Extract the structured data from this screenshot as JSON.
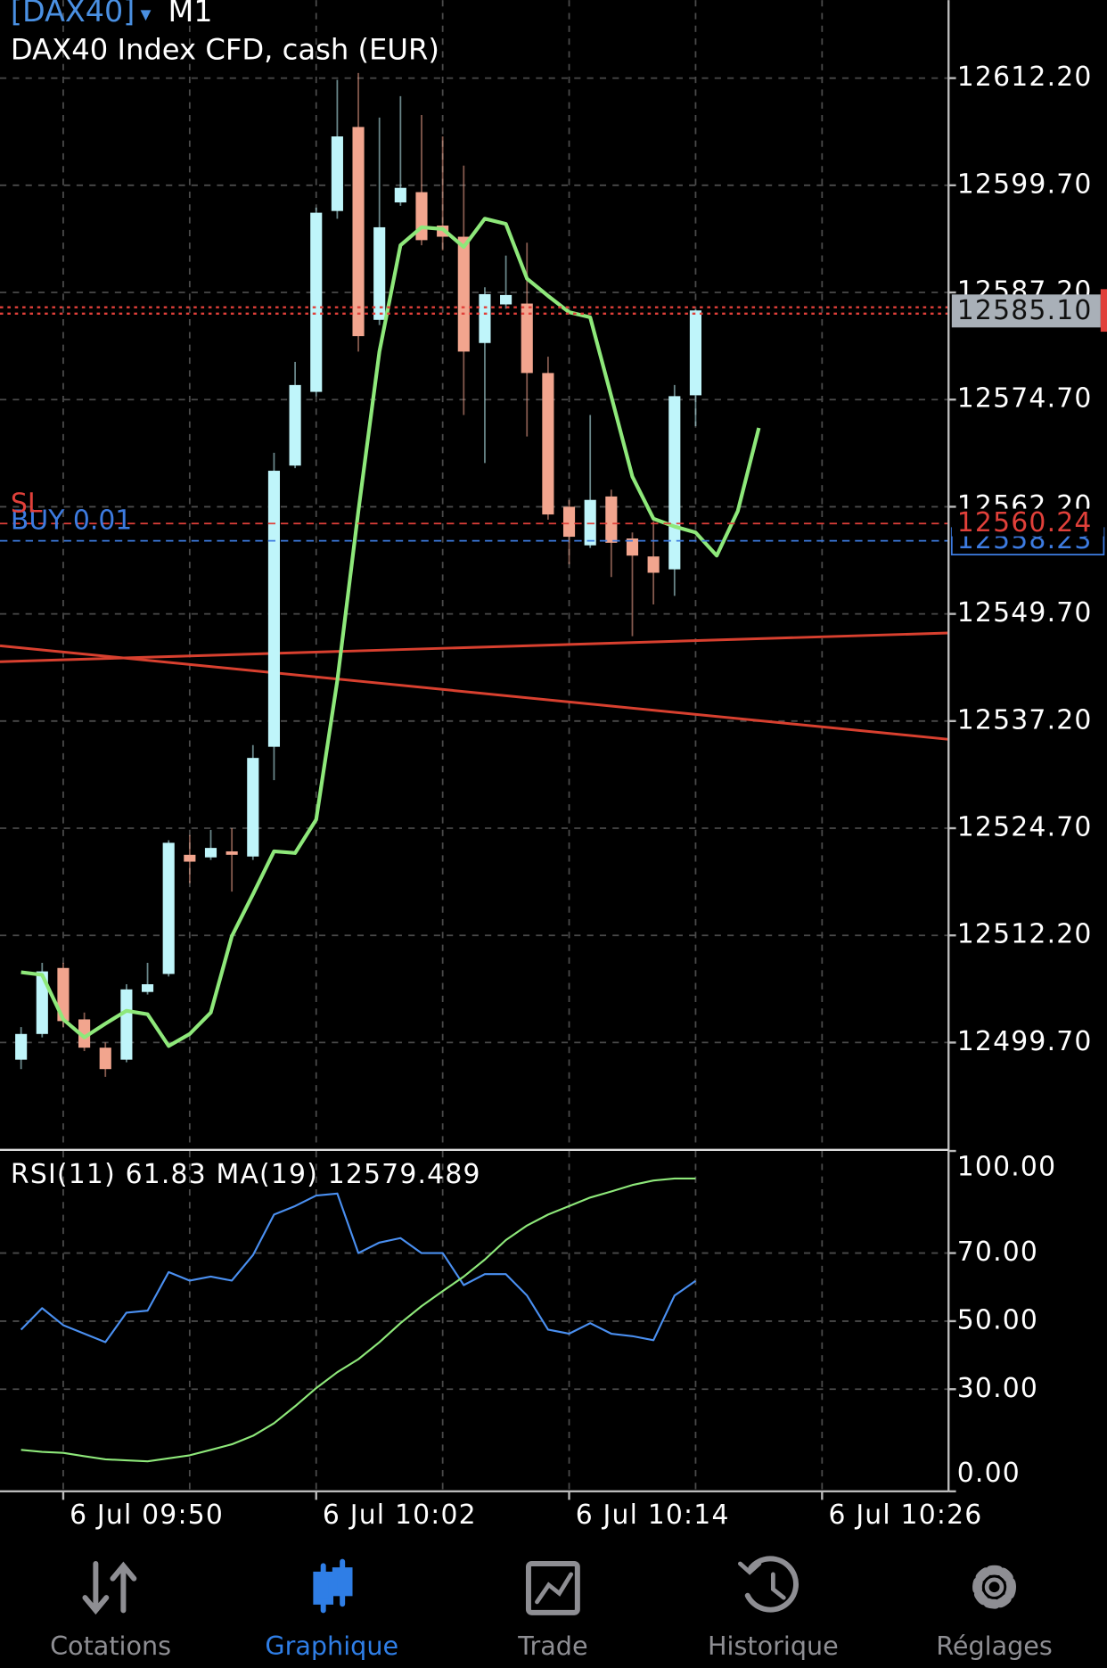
{
  "header": {
    "symbol": "[DAX40]",
    "arrow": "▾",
    "timeframe": "M1",
    "description": "DAX40 Index CFD, cash (EUR)"
  },
  "chart_data": [
    {
      "type": "candlestick",
      "x": [
        "6 Jul 09:48",
        "6 Jul 09:49",
        "6 Jul 09:50",
        "6 Jul 09:51",
        "6 Jul 09:52",
        "6 Jul 09:53",
        "6 Jul 09:54",
        "6 Jul 09:55",
        "6 Jul 09:56",
        "6 Jul 09:57",
        "6 Jul 09:58",
        "6 Jul 09:59",
        "6 Jul 10:00",
        "6 Jul 10:01",
        "6 Jul 10:02",
        "6 Jul 10:03",
        "6 Jul 10:04",
        "6 Jul 10:05",
        "6 Jul 10:06",
        "6 Jul 10:07",
        "6 Jul 10:08",
        "6 Jul 10:09",
        "6 Jul 10:10",
        "6 Jul 10:11",
        "6 Jul 10:12",
        "6 Jul 10:13",
        "6 Jul 10:14",
        "6 Jul 10:15",
        "6 Jul 10:16",
        "6 Jul 10:17",
        "6 Jul 10:18",
        "6 Jul 10:19",
        "6 Jul 10:20"
      ],
      "open": [
        12497.7,
        12500.7,
        12508.4,
        12502.4,
        12499.1,
        12497.7,
        12505.6,
        12507.7,
        12521.6,
        12521.3,
        12522.0,
        12521.4,
        12534.2,
        12567.0,
        12575.6,
        12596.7,
        12606.5,
        12584.0,
        12597.7,
        12598.9,
        12595.0,
        12593.7,
        12581.3,
        12585.8,
        12585.9,
        12577.8,
        12562.2,
        12557.7,
        12563.4,
        12558.5,
        12556.4,
        12554.9,
        12575.2
      ],
      "high": [
        12501.5,
        12509.0,
        12509.0,
        12503.2,
        12499.7,
        12506.5,
        12509.0,
        12523.3,
        12523.9,
        12524.5,
        12524.7,
        12534.4,
        12568.5,
        12579.1,
        12597.1,
        12612.0,
        12612.8,
        12607.6,
        12610.1,
        12607.9,
        12605.4,
        12602.0,
        12587.8,
        12591.5,
        12593.0,
        12579.7,
        12563.0,
        12572.9,
        12564.2,
        12559.2,
        12560.5,
        12576.4,
        12585.2
      ],
      "low": [
        12496.6,
        12500.3,
        12501.5,
        12498.7,
        12495.7,
        12497.4,
        12505.3,
        12507.4,
        12518.3,
        12521.0,
        12517.3,
        12521.0,
        12530.3,
        12566.7,
        12575.1,
        12595.8,
        12580.3,
        12583.4,
        12597.3,
        12592.7,
        12592.1,
        12572.9,
        12567.3,
        12585.3,
        12570.4,
        12560.7,
        12555.5,
        12557.4,
        12554.0,
        12547.1,
        12550.8,
        12551.8,
        12571.6
      ],
      "close": [
        12500.7,
        12508.0,
        12502.2,
        12499.1,
        12496.6,
        12505.9,
        12506.5,
        12523.0,
        12520.8,
        12522.4,
        12521.6,
        12532.9,
        12566.4,
        12576.4,
        12596.5,
        12605.4,
        12582.1,
        12594.8,
        12599.4,
        12593.3,
        12593.7,
        12580.3,
        12587.0,
        12586.9,
        12577.8,
        12561.3,
        12558.7,
        12563.0,
        12558.0,
        12556.5,
        12554.5,
        12575.1,
        12585.1
      ],
      "up_color": "#bff5fa",
      "down_color": "#f2a58e",
      "overlay": {
        "color": "#8ee87a",
        "x": [
          "6 Jul 09:48",
          "6 Jul 09:49",
          "6 Jul 09:50",
          "6 Jul 09:51",
          "6 Jul 09:52",
          "6 Jul 09:53",
          "6 Jul 09:54",
          "6 Jul 09:55",
          "6 Jul 09:56",
          "6 Jul 09:57",
          "6 Jul 09:58",
          "6 Jul 09:59",
          "6 Jul 10:00",
          "6 Jul 10:01",
          "6 Jul 10:02",
          "6 Jul 10:03",
          "6 Jul 10:04",
          "6 Jul 10:05",
          "6 Jul 10:06",
          "6 Jul 10:07",
          "6 Jul 10:08",
          "6 Jul 10:09",
          "6 Jul 10:10",
          "6 Jul 10:11",
          "6 Jul 10:12",
          "6 Jul 10:13",
          "6 Jul 10:14",
          "6 Jul 10:15",
          "6 Jul 10:16",
          "6 Jul 10:17",
          "6 Jul 10:18",
          "6 Jul 10:19",
          "6 Jul 10:20",
          "6 Jul 10:21",
          "6 Jul 10:22",
          "6 Jul 10:23"
        ],
        "values": [
          12507.9,
          12507.6,
          12502.4,
          12500.3,
          12501.9,
          12503.4,
          12503.0,
          12499.3,
          12500.7,
          12503.2,
          12512.1,
          12517.0,
          12522.0,
          12521.8,
          12525.7,
          12541.9,
          12561.7,
          12580.3,
          12592.7,
          12594.8,
          12594.6,
          12592.5,
          12595.8,
          12595.2,
          12588.8,
          12586.8,
          12584.9,
          12584.3,
          12575.1,
          12565.7,
          12560.8,
          12559.9,
          12559.2,
          12556.5,
          12561.7,
          12571.4
        ]
      },
      "xlim": [
        "6 Jul 09:47",
        "6 Jul 10:32"
      ],
      "xticks": [
        "6 Jul 09:50",
        "6 Jul 10:02",
        "6 Jul 10:14",
        "6 Jul 10:26"
      ],
      "ylim": [
        12487.3,
        12621.3
      ],
      "yticks": [
        {
          "value": 12612.2,
          "label": "12612.20"
        },
        {
          "value": 12599.7,
          "label": "12599.70"
        },
        {
          "value": 12587.2,
          "label": "12587.20"
        },
        {
          "value": 12574.7,
          "label": "12574.70"
        },
        {
          "value": 12562.2,
          "label": "12562.20"
        },
        {
          "value": 12549.7,
          "label": "12549.70"
        },
        {
          "value": 12537.2,
          "label": "12537.20"
        },
        {
          "value": 12524.7,
          "label": "12524.70"
        },
        {
          "value": 12512.2,
          "label": "12512.20"
        },
        {
          "value": 12499.7,
          "label": "12499.70"
        }
      ],
      "grid": true,
      "levels": [
        {
          "name": "BUY 0.01",
          "value": 12558.23,
          "label": "12558.23",
          "color": "#3d7be0"
        },
        {
          "name": "SL",
          "value": 12560.24,
          "label": "12560.24",
          "color": "#e0403a"
        }
      ],
      "current_price": {
        "value": 12585.1,
        "label": "12585.10",
        "color": "#e0403a"
      }
    },
    {
      "type": "line",
      "title": "RSI(11) 61.83 MA(19) 12579.489",
      "x": [
        "6 Jul 09:48",
        "6 Jul 09:49",
        "6 Jul 09:50",
        "6 Jul 09:51",
        "6 Jul 09:52",
        "6 Jul 09:53",
        "6 Jul 09:54",
        "6 Jul 09:55",
        "6 Jul 09:56",
        "6 Jul 09:57",
        "6 Jul 09:58",
        "6 Jul 09:59",
        "6 Jul 10:00",
        "6 Jul 10:01",
        "6 Jul 10:02",
        "6 Jul 10:03",
        "6 Jul 10:04",
        "6 Jul 10:05",
        "6 Jul 10:06",
        "6 Jul 10:07",
        "6 Jul 10:08",
        "6 Jul 10:09",
        "6 Jul 10:10",
        "6 Jul 10:11",
        "6 Jul 10:12",
        "6 Jul 10:13",
        "6 Jul 10:14",
        "6 Jul 10:15",
        "6 Jul 10:16",
        "6 Jul 10:17",
        "6 Jul 10:18",
        "6 Jul 10:19",
        "6 Jul 10:20"
      ],
      "series": [
        {
          "color": "#4a8ff0",
          "values": [
            47.5,
            53.8,
            48.8,
            46.3,
            43.8,
            52.5,
            53.1,
            64.4,
            61.9,
            63.1,
            61.9,
            69.4,
            81.3,
            83.8,
            86.9,
            87.5,
            70.0,
            73.1,
            74.4,
            70.0,
            70.0,
            60.6,
            63.8,
            63.8,
            57.5,
            47.5,
            46.3,
            49.4,
            46.3,
            45.6,
            44.4,
            57.5,
            61.83
          ]
        },
        {
          "color": "#8ee87a",
          "values": [
            12.2,
            11.6,
            11.3,
            10.3,
            9.4,
            9.1,
            8.8,
            9.7,
            10.6,
            12.2,
            13.8,
            16.3,
            20.0,
            25.0,
            30.3,
            35.0,
            38.8,
            43.8,
            49.4,
            54.4,
            58.8,
            63.1,
            68.1,
            73.8,
            78.1,
            81.3,
            83.8,
            86.3,
            88.1,
            90.0,
            91.3,
            91.9,
            91.9
          ]
        }
      ],
      "xlim": [
        "6 Jul 09:47",
        "6 Jul 10:32"
      ],
      "xticks": [
        "6 Jul 09:50",
        "6 Jul 10:02",
        "6 Jul 10:14",
        "6 Jul 10:26"
      ],
      "ylim": [
        0,
        100
      ],
      "yticks": [
        {
          "value": 100,
          "label": "100.00"
        },
        {
          "value": 70,
          "label": "70.00"
        },
        {
          "value": 50,
          "label": "50.00"
        },
        {
          "value": 30,
          "label": "30.00"
        },
        {
          "value": 0,
          "label": "0.00"
        }
      ],
      "grid": true
    }
  ],
  "tabs": [
    "Cotations",
    "Graphique",
    "Trade",
    "Historique",
    "Réglages"
  ],
  "active_tab": 1
}
